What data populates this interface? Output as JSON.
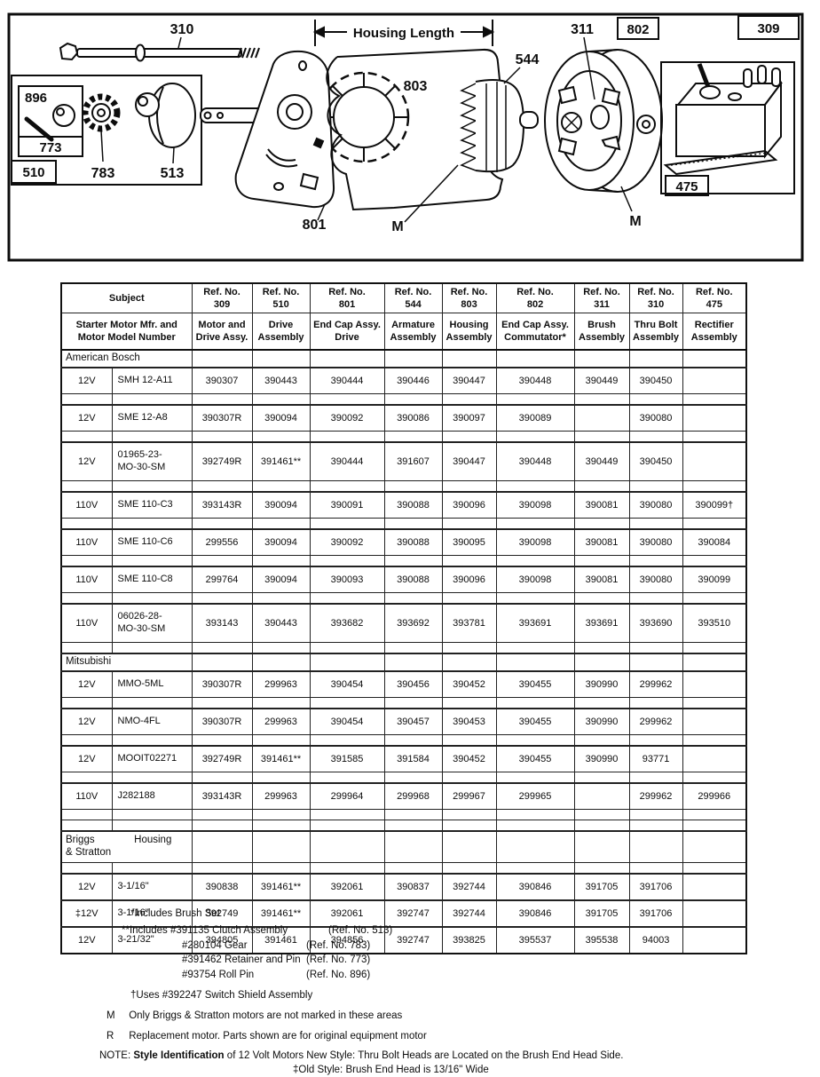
{
  "diagram": {
    "labels": {
      "l310": "310",
      "housing_length": "Housing Length",
      "l544": "544",
      "l311": "311",
      "l802": "802",
      "l309": "309",
      "l803": "803",
      "l896": "896",
      "l773": "773",
      "l783": "783",
      "l513": "513",
      "l510": "510",
      "l801": "801",
      "m_left": "M",
      "m_right": "M",
      "l475": "475"
    }
  },
  "table": {
    "subject_header": "Subject",
    "subject_subheader": "Starter Motor Mfr. and\nMotor Model Number",
    "cols": [
      {
        "ref": "Ref. No.",
        "num": "309",
        "name": "Motor and\nDrive Assy."
      },
      {
        "ref": "Ref. No.",
        "num": "510",
        "name": "Drive\nAssembly"
      },
      {
        "ref": "Ref. No.",
        "num": "801",
        "name": "End Cap Assy.\nDrive"
      },
      {
        "ref": "Ref. No.",
        "num": "544",
        "name": "Armature\nAssembly"
      },
      {
        "ref": "Ref. No.",
        "num": "803",
        "name": "Housing\nAssembly"
      },
      {
        "ref": "Ref. No.",
        "num": "802",
        "name": "End Cap Assy.\nCommutator*"
      },
      {
        "ref": "Ref. No.",
        "num": "311",
        "name": "Brush\nAssembly"
      },
      {
        "ref": "Ref. No.",
        "num": "310",
        "name": "Thru Bolt\nAssembly"
      },
      {
        "ref": "Ref. No.",
        "num": "475",
        "name": "Rectifier\nAssembly"
      }
    ],
    "rows": [
      {
        "type": "section",
        "label": "American Bosch"
      },
      {
        "type": "data",
        "v": "12V",
        "model": "SMH 12-A11",
        "vals": [
          "390307",
          "390443",
          "390444",
          "390446",
          "390447",
          "390448",
          "390449",
          "390450",
          ""
        ]
      },
      {
        "type": "spacer"
      },
      {
        "type": "data",
        "v": "12V",
        "model": "SME 12-A8",
        "vals": [
          "390307R",
          "390094",
          "390092",
          "390086",
          "390097",
          "390089",
          "",
          "390080",
          ""
        ]
      },
      {
        "type": "spacer"
      },
      {
        "type": "data",
        "tall": true,
        "v": "12V",
        "model": "01965-23-\nMO-30-SM",
        "vals": [
          "392749R",
          "391461**",
          "390444",
          "391607",
          "390447",
          "390448",
          "390449",
          "390450",
          ""
        ]
      },
      {
        "type": "spacer"
      },
      {
        "type": "data",
        "v": "110V",
        "model": "SME 110-C3",
        "vals": [
          "393143R",
          "390094",
          "390091",
          "390088",
          "390096",
          "390098",
          "390081",
          "390080",
          "390099†"
        ]
      },
      {
        "type": "spacer"
      },
      {
        "type": "data",
        "v": "110V",
        "model": "SME 110-C6",
        "vals": [
          "299556",
          "390094",
          "390092",
          "390088",
          "390095",
          "390098",
          "390081",
          "390080",
          "390084"
        ]
      },
      {
        "type": "spacer"
      },
      {
        "type": "data",
        "v": "110V",
        "model": "SME 110-C8",
        "vals": [
          "299764",
          "390094",
          "390093",
          "390088",
          "390096",
          "390098",
          "390081",
          "390080",
          "390099"
        ]
      },
      {
        "type": "spacer"
      },
      {
        "type": "data",
        "tall": true,
        "v": "110V",
        "model": "06026-28-\nMO-30-SM",
        "vals": [
          "393143",
          "390443",
          "393682",
          "393692",
          "393781",
          "393691",
          "393691",
          "393690",
          "393510"
        ]
      },
      {
        "type": "spacer"
      },
      {
        "type": "section",
        "label": "Mitsubishi"
      },
      {
        "type": "data",
        "v": "12V",
        "model": "MMO-5ML",
        "vals": [
          "390307R",
          "299963",
          "390454",
          "390456",
          "390452",
          "390455",
          "390990",
          "299962",
          ""
        ]
      },
      {
        "type": "spacer"
      },
      {
        "type": "data",
        "v": "12V",
        "model": "NMO-4FL",
        "vals": [
          "390307R",
          "299963",
          "390454",
          "390457",
          "390453",
          "390455",
          "390990",
          "299962",
          ""
        ]
      },
      {
        "type": "spacer"
      },
      {
        "type": "data",
        "v": "12V",
        "model": "MOOIT02271",
        "vals": [
          "392749R",
          "391461**",
          "391585",
          "391584",
          "390452",
          "390455",
          "390990",
          "93771",
          ""
        ]
      },
      {
        "type": "spacer"
      },
      {
        "type": "data",
        "v": "110V",
        "model": "J282188",
        "vals": [
          "393143R",
          "299963",
          "299964",
          "299968",
          "299967",
          "299965",
          "",
          "299962",
          "299966"
        ]
      },
      {
        "type": "spacer"
      },
      {
        "type": "spacer"
      },
      {
        "type": "section",
        "tall": true,
        "label": "Briggs\n& Stratton",
        "label2": "Housing"
      },
      {
        "type": "spacer"
      },
      {
        "type": "data",
        "v": "12V",
        "model": "3-1/16\"",
        "vals": [
          "390838",
          "391461**",
          "392061",
          "390837",
          "392744",
          "390846",
          "391705",
          "391706",
          ""
        ]
      },
      {
        "type": "data",
        "v": "‡12V",
        "model": "3-1/16\"",
        "vals": [
          "392749",
          "391461**",
          "392061",
          "392747",
          "392744",
          "390846",
          "391705",
          "391706",
          ""
        ]
      },
      {
        "type": "data",
        "v": "12V",
        "model": "3-21/32\"",
        "vals": [
          "394805",
          "391461",
          "394856",
          "392747",
          "393825",
          "395537",
          "395538",
          "94003",
          ""
        ]
      }
    ]
  },
  "footnotes": {
    "star": "*Includes Brush Set",
    "dstar_prefix": "**Includes",
    "dstar_items": [
      {
        "part": "#391135 Clutch Assembly",
        "ref": "(Ref. No. 513)"
      },
      {
        "part": "#280104 Gear",
        "ref": "(Ref. No. 783)"
      },
      {
        "part": "#391462 Retainer and Pin",
        "ref": "(Ref. No. 773)"
      },
      {
        "part": "#93754  Roll Pin",
        "ref": "(Ref. No. 896)"
      }
    ],
    "dagger": "†Uses #392247 Switch Shield Assembly",
    "m_label": "M",
    "m_text": "Only Briggs & Stratton motors are not marked in these areas",
    "r_label": "R",
    "r_text": "Replacement motor. Parts shown are for original equipment motor",
    "note_label": "NOTE:",
    "note_bold": "Style Identification",
    "note_rest": "of 12 Volt Motors New Style: Thru Bolt Heads are Located on the Brush End Head Side.",
    "note_line2": "‡Old Style: Brush End Head is 13/16\" Wide"
  }
}
